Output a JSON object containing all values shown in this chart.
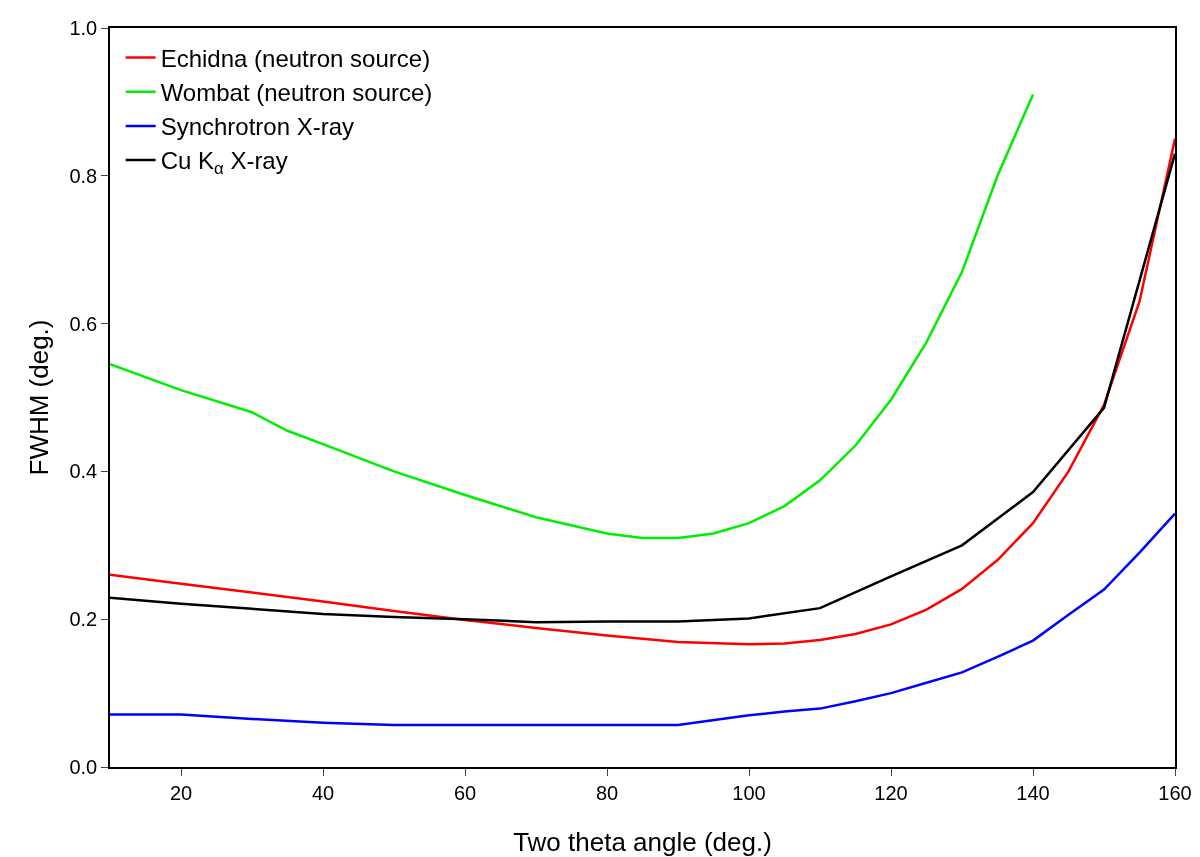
{
  "chart_data": {
    "type": "line",
    "xlabel": "Two theta angle (deg.)",
    "ylabel": "FWHM (deg.)",
    "xlim": [
      10,
      160
    ],
    "xticks": [
      20,
      40,
      60,
      80,
      100,
      120,
      140,
      160
    ],
    "ylim": [
      0,
      1
    ],
    "yticks": [
      {
        "value": 0,
        "label": "0.0"
      },
      {
        "value": 0.2,
        "label": "0.2"
      },
      {
        "value": 0.4,
        "label": "0.4"
      },
      {
        "value": 0.6,
        "label": "0.6"
      },
      {
        "value": 0.8,
        "label": "0.8"
      },
      {
        "value": 1,
        "label": "1.0"
      }
    ],
    "grid": false,
    "legend": "top left",
    "marker": "none",
    "line_style": "solid",
    "series": [
      {
        "name": "Echidna (neutron source)",
        "color": "#ff0000",
        "x": [
          10,
          20,
          30,
          40,
          50,
          60,
          70,
          80,
          90,
          100,
          105,
          110,
          115,
          120,
          125,
          130,
          135,
          140,
          145,
          150,
          155,
          160
        ],
        "values": [
          0.26,
          0.248,
          0.236,
          0.224,
          0.211,
          0.199,
          0.188,
          0.178,
          0.169,
          0.166,
          0.167,
          0.172,
          0.18,
          0.193,
          0.213,
          0.241,
          0.28,
          0.33,
          0.4,
          0.49,
          0.63,
          0.85
        ]
      },
      {
        "name": "Wombat (neutron source)",
        "color": "#00ee00",
        "x": [
          10,
          20,
          30,
          35,
          40,
          50,
          60,
          70,
          80,
          85,
          90,
          95,
          100,
          105,
          110,
          115,
          120,
          125,
          130,
          135,
          140
        ],
        "values": [
          0.545,
          0.51,
          0.48,
          0.455,
          0.437,
          0.4,
          0.368,
          0.338,
          0.316,
          0.31,
          0.31,
          0.316,
          0.33,
          0.353,
          0.388,
          0.435,
          0.497,
          0.575,
          0.67,
          0.8,
          0.91
        ]
      },
      {
        "name": "Synchrotron X-ray",
        "color": "#0000ff",
        "x": [
          10,
          20,
          30,
          40,
          50,
          60,
          70,
          80,
          90,
          100,
          105,
          110,
          115,
          120,
          125,
          130,
          135,
          140,
          145,
          150,
          155,
          160
        ],
        "values": [
          0.071,
          0.071,
          0.065,
          0.06,
          0.057,
          0.057,
          0.057,
          0.057,
          0.057,
          0.07,
          0.075,
          0.079,
          0.089,
          0.1,
          0.114,
          0.128,
          0.149,
          0.171,
          0.206,
          0.24,
          0.29,
          0.343
        ]
      },
      {
        "name": "Cu K$_{α}$ X-ray",
        "color": "#000000",
        "x": [
          10,
          20,
          30,
          40,
          50,
          60,
          70,
          80,
          90,
          100,
          110,
          120,
          130,
          140,
          150,
          160
        ],
        "values": [
          0.229,
          0.221,
          0.214,
          0.207,
          0.203,
          0.2,
          0.196,
          0.197,
          0.197,
          0.201,
          0.215,
          0.258,
          0.3,
          0.372,
          0.486,
          0.83
        ]
      }
    ]
  }
}
